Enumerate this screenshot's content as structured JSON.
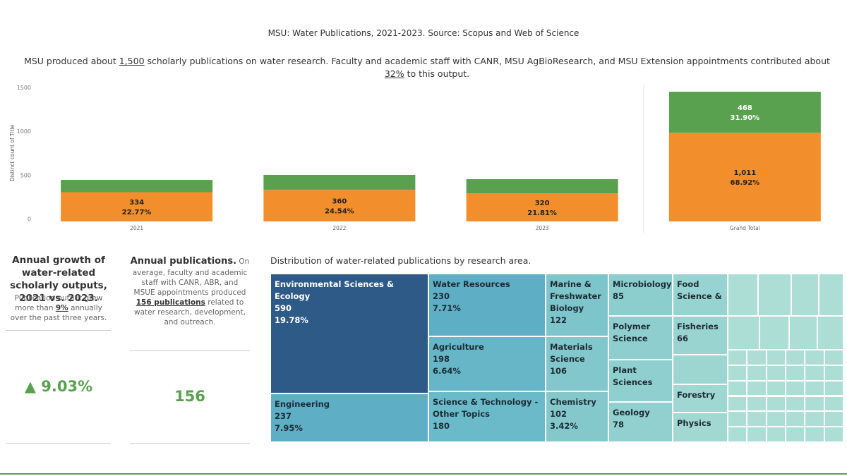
{
  "header": {
    "title": "MSU: Water Publications,  2021-2023. Source: Scopus and Web of Science",
    "summary": [
      "MSU produced about ",
      "1,500",
      " scholarly publications on water research. Faculty and academic staff with CANR, MSU AgBioResearch, and MSU Extension appointments contributed about ",
      "32%",
      " to this output."
    ]
  },
  "chart_data": [
    {
      "type": "stacked-bar",
      "y_label": "Distinct count of Title",
      "categories": [
        "2021",
        "2022",
        "2023",
        "Grand Total"
      ],
      "series": [
        {
          "color": "#f28e2b",
          "values": [
            334,
            360,
            320,
            1011
          ],
          "value_labels": [
            "334",
            "360",
            "320",
            "1,011"
          ],
          "share_labels": [
            "22.77%",
            "24.54%",
            "21.81%",
            "68.92%"
          ]
        },
        {
          "color": "#59a14f",
          "values": [
            140,
            171,
            162,
            468
          ],
          "value_labels": [
            null,
            null,
            null,
            "468"
          ],
          "share_labels": [
            null,
            null,
            null,
            "31.90%"
          ]
        }
      ],
      "ylim": [
        0,
        1560
      ],
      "yticks": [
        0,
        500,
        1000,
        1500
      ]
    },
    {
      "type": "treemap",
      "title": "Distribution of water-related publications by research area.",
      "items": [
        {
          "name": "Environmental Sciences & Ecology",
          "value": 590,
          "share_label": "19.78%",
          "color": "#2e5a87"
        },
        {
          "name": "Engineering",
          "value": 237,
          "share_label": "7.95%",
          "color": "#5eaec6"
        },
        {
          "name": "Water Resources",
          "value": 230,
          "share_label": "7.71%",
          "color": "#5eaec6"
        },
        {
          "name": "Agriculture",
          "value": 198,
          "share_label": "6.64%",
          "color": "#66b6c8"
        },
        {
          "name": "Science & Technology - Other Topics",
          "value": 180,
          "color": "#6bbac9"
        },
        {
          "name": "Marine & Freshwater Biology",
          "value": 122,
          "color": "#7ec5cb"
        },
        {
          "name": "Materials Science",
          "value": 106,
          "color": "#82c7cc"
        },
        {
          "name": "Chemistry",
          "value": 102,
          "share_label": "3.42%",
          "color": "#84c8cc"
        },
        {
          "name": "Microbiology",
          "value": 85,
          "color": "#8ccdce"
        },
        {
          "name": "Polymer Science",
          "color": "#8fcecf"
        },
        {
          "name": "Plant Sciences",
          "color": "#90cfcf"
        },
        {
          "name": "Geology",
          "value": 78,
          "color": "#92d0cf"
        },
        {
          "name": "Food Science &",
          "color": "#97d3d0"
        },
        {
          "name": "Fisheries",
          "value": 66,
          "color": "#9ad4d1"
        },
        {
          "name": "Forestry",
          "color": "#9fd7d2"
        },
        {
          "name": "Physics",
          "color": "#a1d8d2"
        }
      ]
    }
  ],
  "kpis": [
    {
      "title": "Annual growth of water-related scholarly outputs, 2021 vs. 2023.",
      "body": [
        "Publication output grew more than ",
        "9%",
        " annually over the past three years."
      ],
      "value": "▲ 9.03%"
    },
    {
      "title": "Annual publications.",
      "body": [
        " On average, faculty and academic staff with CANR, ABR, and MSUE appointments produced ",
        "156 publications",
        " related to water research, development, and outreach."
      ],
      "value": "156"
    }
  ]
}
